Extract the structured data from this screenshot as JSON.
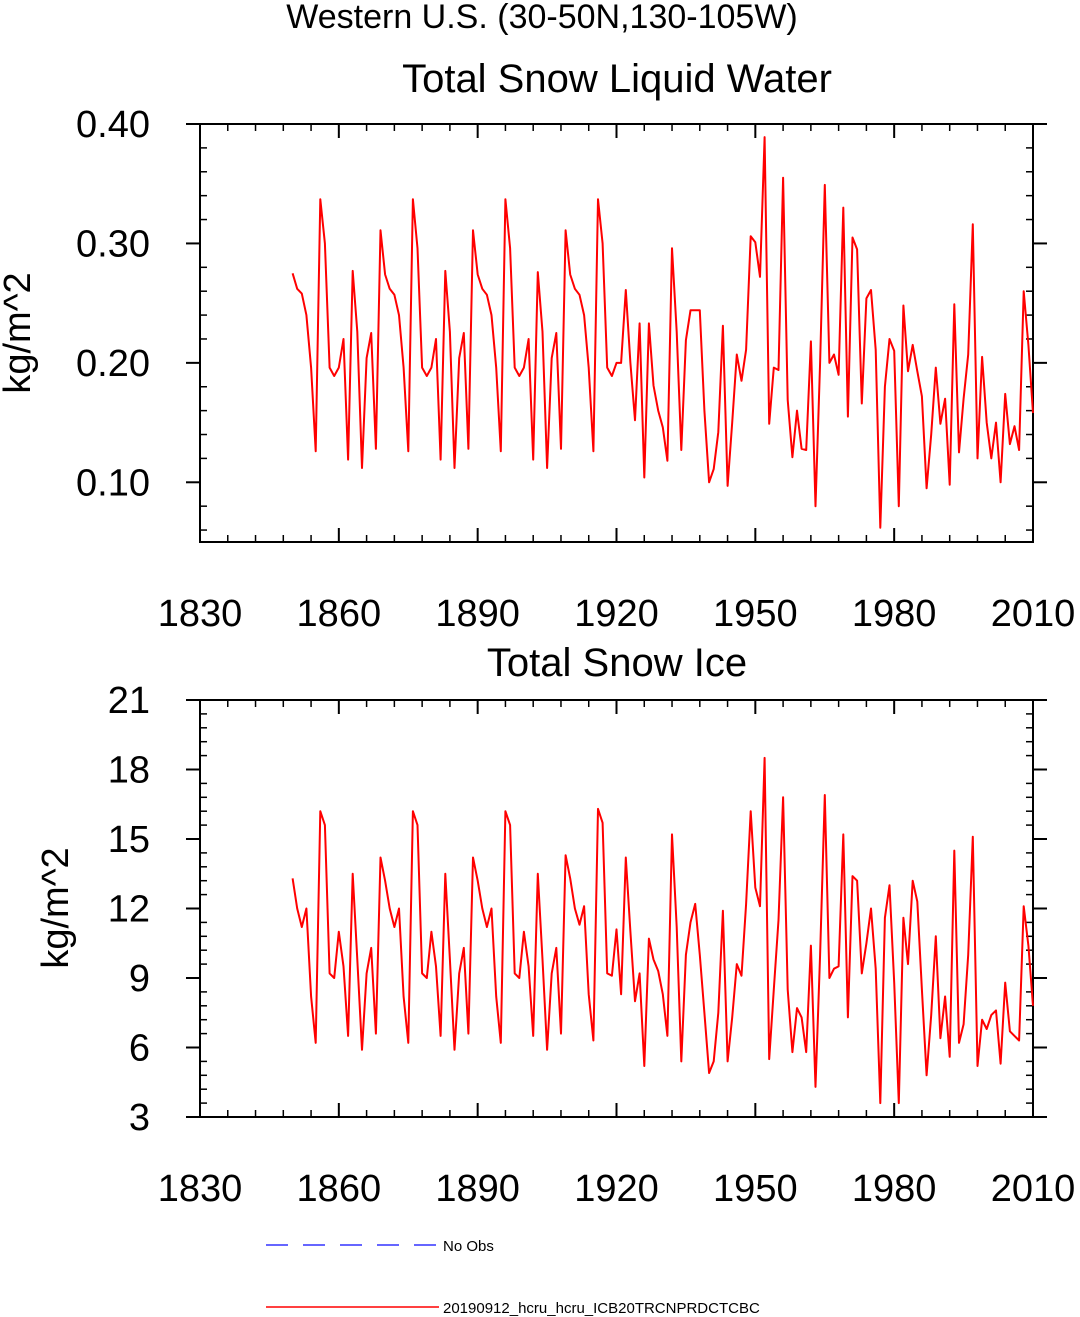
{
  "page_title": "Western U.S. (30-50N,130-105W)",
  "colors": {
    "series": "#ff0000",
    "no_obs": "#3333ff",
    "axis": "#000000"
  },
  "legend": {
    "items": [
      {
        "label": "No Obs",
        "color": "#3333ff",
        "dash": "dashed"
      },
      {
        "label": "20190912_hcru_hcru_ICB20TRCNPRDCTCBC",
        "color": "#ff0000",
        "dash": "solid"
      }
    ]
  },
  "chart_data": [
    {
      "type": "line",
      "title": "Total Snow Liquid Water",
      "xlabel": "",
      "ylabel": "kg/m^2",
      "xlim": [
        1830,
        2010
      ],
      "ylim": [
        0.05,
        0.4
      ],
      "xticks": [
        1830,
        1860,
        1890,
        1920,
        1950,
        1980,
        2010
      ],
      "xtick_labels": [
        "1830",
        "1860",
        "1890",
        "1920",
        "1950",
        "1980",
        "2010"
      ],
      "yticks": [
        0.1,
        0.2,
        0.3,
        0.4
      ],
      "ytick_labels": [
        "0.10",
        "0.20",
        "0.30",
        "0.40"
      ],
      "series": [
        {
          "name": "20190912_hcru_hcru_ICB20TRCNPRDCTCBC",
          "x_start": 1850,
          "values": [
            0.275,
            0.262,
            0.258,
            0.24,
            0.196,
            0.126,
            0.337,
            0.3,
            0.196,
            0.189,
            0.196,
            0.22,
            0.119,
            0.277,
            0.226,
            0.112,
            0.204,
            0.225,
            0.128,
            0.311,
            0.274,
            0.262,
            0.257,
            0.24,
            0.196,
            0.126,
            0.337,
            0.296,
            0.196,
            0.189,
            0.196,
            0.22,
            0.119,
            0.277,
            0.226,
            0.112,
            0.204,
            0.225,
            0.128,
            0.311,
            0.274,
            0.262,
            0.257,
            0.24,
            0.196,
            0.126,
            0.337,
            0.296,
            0.196,
            0.189,
            0.196,
            0.22,
            0.119,
            0.276,
            0.226,
            0.112,
            0.204,
            0.225,
            0.128,
            0.311,
            0.274,
            0.262,
            0.257,
            0.24,
            0.196,
            0.126,
            0.337,
            0.3,
            0.196,
            0.189,
            0.2,
            0.2,
            0.261,
            0.2,
            0.152,
            0.233,
            0.104,
            0.233,
            0.181,
            0.16,
            0.146,
            0.118,
            0.296,
            0.226,
            0.127,
            0.219,
            0.244,
            0.244,
            0.244,
            0.16,
            0.1,
            0.111,
            0.142,
            0.231,
            0.097,
            0.15,
            0.207,
            0.185,
            0.211,
            0.306,
            0.301,
            0.272,
            0.389,
            0.149,
            0.196,
            0.194,
            0.355,
            0.169,
            0.121,
            0.16,
            0.128,
            0.127,
            0.218,
            0.08,
            0.2,
            0.349,
            0.2,
            0.207,
            0.19,
            0.33,
            0.155,
            0.305,
            0.295,
            0.166,
            0.254,
            0.261,
            0.211,
            0.062,
            0.18,
            0.22,
            0.21,
            0.08,
            0.248,
            0.193,
            0.215,
            0.193,
            0.172,
            0.095,
            0.14,
            0.196,
            0.149,
            0.17,
            0.098,
            0.249,
            0.125,
            0.17,
            0.207,
            0.316,
            0.12,
            0.205,
            0.15,
            0.12,
            0.15,
            0.1,
            0.174,
            0.132,
            0.147,
            0.127,
            0.26,
            0.215,
            0.158
          ]
        },
        {
          "name": "No Obs",
          "values": []
        }
      ]
    },
    {
      "type": "line",
      "title": "Total Snow Ice",
      "xlabel": "",
      "ylabel": "kg/m^2",
      "xlim": [
        1830,
        2010
      ],
      "ylim": [
        3,
        21
      ],
      "xticks": [
        1830,
        1860,
        1890,
        1920,
        1950,
        1980,
        2010
      ],
      "xtick_labels": [
        "1830",
        "1860",
        "1890",
        "1920",
        "1950",
        "1980",
        "2010"
      ],
      "yticks": [
        3,
        6,
        9,
        12,
        15,
        18,
        21
      ],
      "ytick_labels": [
        "3",
        "6",
        "9",
        "12",
        "15",
        "18",
        "21"
      ],
      "series": [
        {
          "name": "20190912_hcru_hcru_ICB20TRCNPRDCTCBC",
          "x_start": 1850,
          "values": [
            13.3,
            12.0,
            11.2,
            12.0,
            8.2,
            6.2,
            16.2,
            15.6,
            9.2,
            9.0,
            11.0,
            9.5,
            6.5,
            13.5,
            9.8,
            5.9,
            9.2,
            10.3,
            6.6,
            14.2,
            13.2,
            12.0,
            11.2,
            12.0,
            8.2,
            6.2,
            16.2,
            15.6,
            9.2,
            9.0,
            11.0,
            9.5,
            6.5,
            13.5,
            9.8,
            5.9,
            9.2,
            10.3,
            6.6,
            14.2,
            13.2,
            12.0,
            11.2,
            12.0,
            8.2,
            6.2,
            16.2,
            15.6,
            9.2,
            9.0,
            11.0,
            9.5,
            6.5,
            13.5,
            9.8,
            5.9,
            9.2,
            10.3,
            6.6,
            14.3,
            13.3,
            12.0,
            11.3,
            12.1,
            8.3,
            6.3,
            16.3,
            15.7,
            9.2,
            9.1,
            11.1,
            8.3,
            14.2,
            11.0,
            8.0,
            9.2,
            5.2,
            10.7,
            9.8,
            9.3,
            8.3,
            6.5,
            15.2,
            11.2,
            5.4,
            10.0,
            11.4,
            12.2,
            10.0,
            7.5,
            4.9,
            5.4,
            7.5,
            11.9,
            5.4,
            7.3,
            9.6,
            9.1,
            12.2,
            16.2,
            12.9,
            12.1,
            18.5,
            5.5,
            8.5,
            11.5,
            16.8,
            8.5,
            5.8,
            7.7,
            7.3,
            5.8,
            10.4,
            4.3,
            10.0,
            16.9,
            9.0,
            9.4,
            9.5,
            15.2,
            7.3,
            13.4,
            13.2,
            9.2,
            10.5,
            12.0,
            9.4,
            3.6,
            11.6,
            13.0,
            8.8,
            3.6,
            11.6,
            9.6,
            13.2,
            12.3,
            8.5,
            4.8,
            7.4,
            10.8,
            6.4,
            8.2,
            5.6,
            14.5,
            6.2,
            7.0,
            10.0,
            15.1,
            5.2,
            7.2,
            6.8,
            7.4,
            7.6,
            5.3,
            8.8,
            6.7,
            6.5,
            6.3,
            12.1,
            10.4,
            7.8
          ]
        },
        {
          "name": "No Obs",
          "values": []
        }
      ]
    }
  ]
}
